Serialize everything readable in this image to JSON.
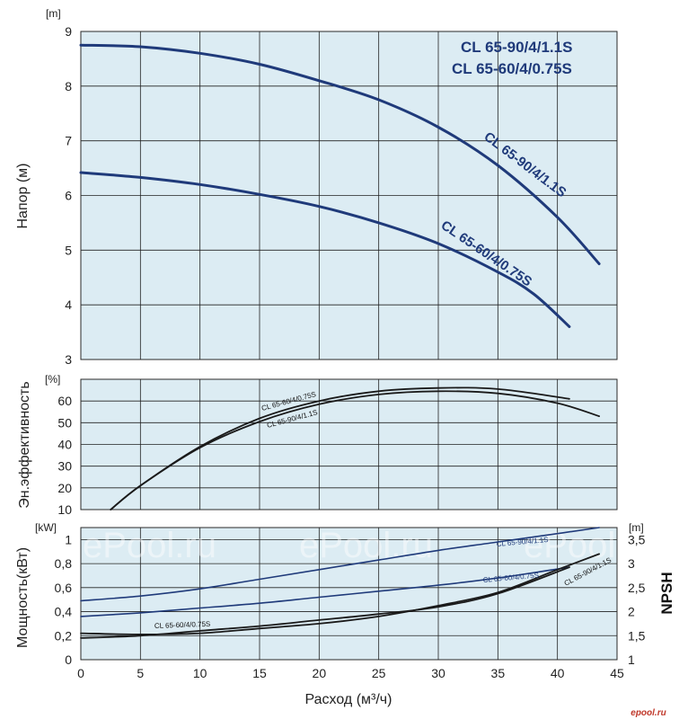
{
  "chart_data": [
    {
      "type": "line",
      "panel": "head",
      "title": "",
      "xlabel": "",
      "ylabel": "Напор (м)",
      "yunit": "[m]",
      "xlim": [
        0,
        45
      ],
      "ylim": [
        3,
        9
      ],
      "yticks": [
        "3",
        "4",
        "5",
        "6",
        "7",
        "8",
        "9"
      ],
      "grid": true,
      "legend": [
        "CL 65-90/4/1.1S",
        "CL 65-60/4/0.75S"
      ],
      "legend_position": "top-right",
      "series": [
        {
          "name": "CL 65-90/4/1.1S",
          "color": "#1f3a7a",
          "x": [
            0,
            5,
            10,
            15,
            20,
            25,
            30,
            35,
            40,
            43.5
          ],
          "y": [
            8.75,
            8.72,
            8.6,
            8.4,
            8.1,
            7.75,
            7.25,
            6.55,
            5.6,
            4.75
          ]
        },
        {
          "name": "CL 65-60/4/0.75S",
          "color": "#1f3a7a",
          "x": [
            0,
            5,
            10,
            15,
            20,
            25,
            30,
            35,
            38,
            41
          ],
          "y": [
            6.42,
            6.33,
            6.2,
            6.02,
            5.8,
            5.5,
            5.12,
            4.6,
            4.2,
            3.6
          ]
        }
      ]
    },
    {
      "type": "line",
      "panel": "efficiency",
      "title": "",
      "xlabel": "",
      "ylabel": "Эн.эффективность",
      "yunit": "[%]",
      "xlim": [
        0,
        45
      ],
      "ylim": [
        10,
        70
      ],
      "yticks": [
        "10",
        "20",
        "30",
        "40",
        "50",
        "60"
      ],
      "grid": true,
      "series": [
        {
          "name": "CL 65-60/4/0.75S",
          "color": "#1a1a1a",
          "x": [
            2.5,
            5,
            10,
            15,
            20,
            25,
            30,
            35,
            41
          ],
          "y": [
            10,
            21,
            39,
            52,
            60,
            64.5,
            66,
            65.5,
            61
          ]
        },
        {
          "name": "CL 65-90/4/1.1S",
          "color": "#1a1a1a",
          "x": [
            2.5,
            5,
            10,
            15,
            20,
            25,
            30,
            35,
            40,
            43.5
          ],
          "y": [
            10,
            21,
            38.5,
            50.5,
            58.5,
            63,
            64.5,
            63.5,
            59,
            53
          ]
        }
      ]
    },
    {
      "type": "line",
      "panel": "power_npsh",
      "title": "",
      "xlabel": "Расход (м³/ч)",
      "ylabel": "Мощность(кВт)",
      "yunit": "[kW]",
      "y2label": "NPSH",
      "y2unit": "[m]",
      "xlim": [
        0,
        45
      ],
      "ylim": [
        0,
        1.1
      ],
      "yticks": [
        "0",
        "0,2",
        "0,4",
        "0,6",
        "0,8",
        "1"
      ],
      "y2lim": [
        1,
        3.75
      ],
      "y2ticks": [
        "1",
        "1,5",
        "2",
        "2,5",
        "3",
        "3,5"
      ],
      "xticks": [
        "0",
        "5",
        "10",
        "15",
        "20",
        "25",
        "30",
        "35",
        "40",
        "45"
      ],
      "grid": true,
      "series": [
        {
          "name": "CL 65-90/4/1.1S",
          "kind": "power",
          "color": "#1f3a7a",
          "x": [
            0,
            5,
            10,
            15,
            20,
            25,
            30,
            35,
            40,
            43.5
          ],
          "y": [
            0.49,
            0.53,
            0.59,
            0.67,
            0.75,
            0.83,
            0.91,
            0.98,
            1.05,
            1.1
          ]
        },
        {
          "name": "CL 65-60/4/0.75S",
          "kind": "power",
          "color": "#1f3a7a",
          "x": [
            0,
            5,
            10,
            15,
            20,
            25,
            30,
            35,
            41
          ],
          "y": [
            0.36,
            0.39,
            0.43,
            0.47,
            0.52,
            0.57,
            0.62,
            0.68,
            0.77
          ]
        },
        {
          "name": "CL 65-60/4/0.75S",
          "kind": "npsh",
          "color": "#1a1a1a",
          "x": [
            0,
            5,
            10,
            15,
            20,
            25,
            30,
            35,
            41
          ],
          "y": [
            0.18,
            0.2,
            0.24,
            0.28,
            0.33,
            0.38,
            0.44,
            0.55,
            0.77
          ]
        },
        {
          "name": "CL 65-90/4/1.1S",
          "kind": "npsh",
          "color": "#1a1a1a",
          "x": [
            0,
            5,
            10,
            15,
            20,
            25,
            30,
            35,
            40,
            43.5
          ],
          "y": [
            0.22,
            0.21,
            0.22,
            0.26,
            0.3,
            0.36,
            0.45,
            0.56,
            0.75,
            0.88
          ]
        }
      ]
    }
  ],
  "watermarks": [
    "u",
    "ePool.ru",
    "ePool.ru",
    "ePool.ru"
  ],
  "brand_mark": "epool.ru",
  "colors": {
    "panel": "#dcecf3",
    "blue_curve": "#1f3a7a",
    "black_curve": "#1a1a1a",
    "brand": "#c0392b"
  }
}
